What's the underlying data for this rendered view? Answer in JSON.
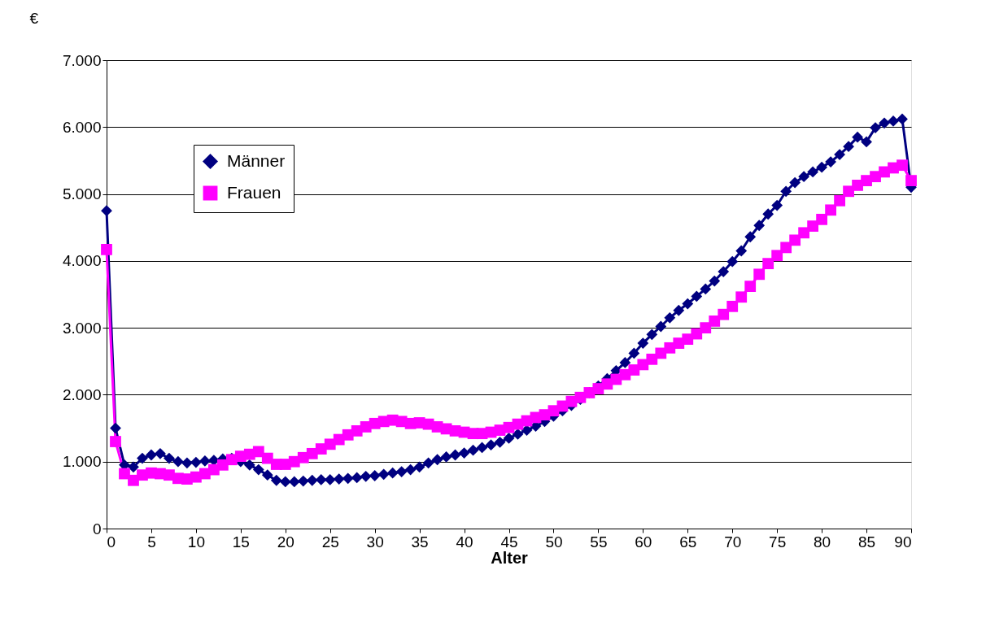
{
  "chart_data": {
    "type": "line",
    "xlabel": "Alter",
    "ylabel": "€",
    "x": [
      0,
      1,
      2,
      3,
      4,
      5,
      6,
      7,
      8,
      9,
      10,
      11,
      12,
      13,
      14,
      15,
      16,
      17,
      18,
      19,
      20,
      21,
      22,
      23,
      24,
      25,
      26,
      27,
      28,
      29,
      30,
      31,
      32,
      33,
      34,
      35,
      36,
      37,
      38,
      39,
      40,
      41,
      42,
      43,
      44,
      45,
      46,
      47,
      48,
      49,
      50,
      51,
      52,
      53,
      54,
      55,
      56,
      57,
      58,
      59,
      60,
      61,
      62,
      63,
      64,
      65,
      66,
      67,
      68,
      69,
      70,
      71,
      72,
      73,
      74,
      75,
      76,
      77,
      78,
      79,
      80,
      81,
      82,
      83,
      84,
      85,
      86,
      87,
      88,
      89,
      90
    ],
    "series": [
      {
        "name": "Männer",
        "color": "#000080",
        "marker": "diamond",
        "values": [
          4750,
          1500,
          950,
          920,
          1050,
          1100,
          1120,
          1050,
          1000,
          980,
          990,
          1010,
          1020,
          1040,
          1050,
          1000,
          950,
          880,
          800,
          720,
          700,
          700,
          710,
          720,
          730,
          730,
          740,
          750,
          760,
          780,
          790,
          810,
          830,
          850,
          880,
          920,
          980,
          1030,
          1070,
          1100,
          1130,
          1170,
          1210,
          1250,
          1290,
          1350,
          1410,
          1470,
          1530,
          1600,
          1680,
          1760,
          1840,
          1930,
          2030,
          2130,
          2240,
          2360,
          2480,
          2620,
          2770,
          2900,
          3020,
          3150,
          3260,
          3360,
          3470,
          3580,
          3700,
          3840,
          3990,
          4150,
          4360,
          4530,
          4700,
          4830,
          5040,
          5170,
          5260,
          5330,
          5400,
          5480,
          5590,
          5710,
          5850,
          5780,
          5990,
          6060,
          6090,
          6120,
          5100
        ]
      },
      {
        "name": "Frauen",
        "color": "#ff00ff",
        "marker": "square",
        "values": [
          4170,
          1300,
          820,
          720,
          800,
          830,
          820,
          800,
          750,
          740,
          770,
          820,
          880,
          950,
          1030,
          1080,
          1110,
          1150,
          1050,
          960,
          960,
          1000,
          1060,
          1120,
          1190,
          1260,
          1330,
          1400,
          1460,
          1520,
          1570,
          1600,
          1620,
          1600,
          1570,
          1580,
          1560,
          1520,
          1490,
          1460,
          1440,
          1420,
          1420,
          1440,
          1470,
          1510,
          1560,
          1610,
          1660,
          1700,
          1760,
          1830,
          1900,
          1960,
          2030,
          2090,
          2160,
          2230,
          2300,
          2370,
          2450,
          2530,
          2620,
          2700,
          2770,
          2830,
          2910,
          3000,
          3100,
          3200,
          3320,
          3460,
          3620,
          3800,
          3960,
          4080,
          4200,
          4310,
          4420,
          4520,
          4620,
          4760,
          4900,
          5040,
          5130,
          5200,
          5260,
          5330,
          5390,
          5430,
          5200
        ]
      }
    ],
    "xlim": [
      0,
      90
    ],
    "xticks": [
      0,
      5,
      10,
      15,
      20,
      25,
      30,
      35,
      40,
      45,
      50,
      55,
      60,
      65,
      70,
      75,
      80,
      85,
      90
    ],
    "ylim": [
      0,
      7000
    ],
    "yticks": [
      0,
      {
        "value": 1000,
        "label": "1.000"
      },
      {
        "value": 2000,
        "label": "2.000"
      },
      {
        "value": 3000,
        "label": "3.000"
      },
      {
        "value": 4000,
        "label": "4.000"
      },
      {
        "value": 5000,
        "label": "5.000"
      },
      {
        "value": 6000,
        "label": "6.000"
      },
      {
        "value": 7000,
        "label": "7.000"
      }
    ],
    "grid": "y",
    "legend": "top left",
    "line_style": "solid"
  }
}
